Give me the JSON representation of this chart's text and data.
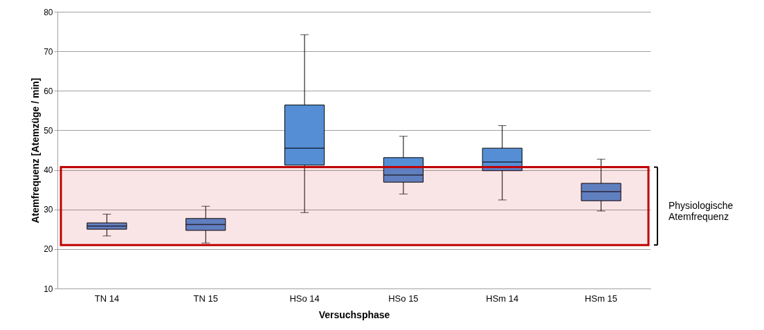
{
  "chart_data": {
    "type": "box",
    "xlabel": "Versuchsphase",
    "ylabel": "Atemfrequenz [Atemzüge / min]",
    "categories": [
      "TN 14",
      "TN 15",
      "HSo 14",
      "HSo 15",
      "HSm 14",
      "HSm 15"
    ],
    "series": [
      {
        "color": "#558ed5",
        "boxes": [
          {
            "low": 23.3,
            "q1": 25.0,
            "median": 25.8,
            "q3": 26.6,
            "high": 28.8
          },
          {
            "low": 21.5,
            "q1": 24.7,
            "median": 26.2,
            "q3": 27.7,
            "high": 30.8
          },
          {
            "low": 29.2,
            "q1": 41.2,
            "median": 45.5,
            "q3": 56.4,
            "high": 74.2
          },
          {
            "low": 33.9,
            "q1": 36.9,
            "median": 38.7,
            "q3": 43.1,
            "high": 48.5
          },
          {
            "low": 32.4,
            "q1": 39.8,
            "median": 42.0,
            "q3": 45.5,
            "high": 51.2
          },
          {
            "low": 29.6,
            "q1": 32.2,
            "median": 34.5,
            "q3": 36.6,
            "high": 42.7
          }
        ]
      }
    ],
    "ylim": [
      10,
      80
    ],
    "yticks": [
      10,
      20,
      30,
      40,
      50,
      60,
      70,
      80
    ],
    "grid": "y",
    "bands": [
      {
        "axis": "y",
        "from": 21,
        "to": 40.7,
        "label": "Physiologische Atemfrequenz",
        "color": "#c00000"
      }
    ]
  }
}
